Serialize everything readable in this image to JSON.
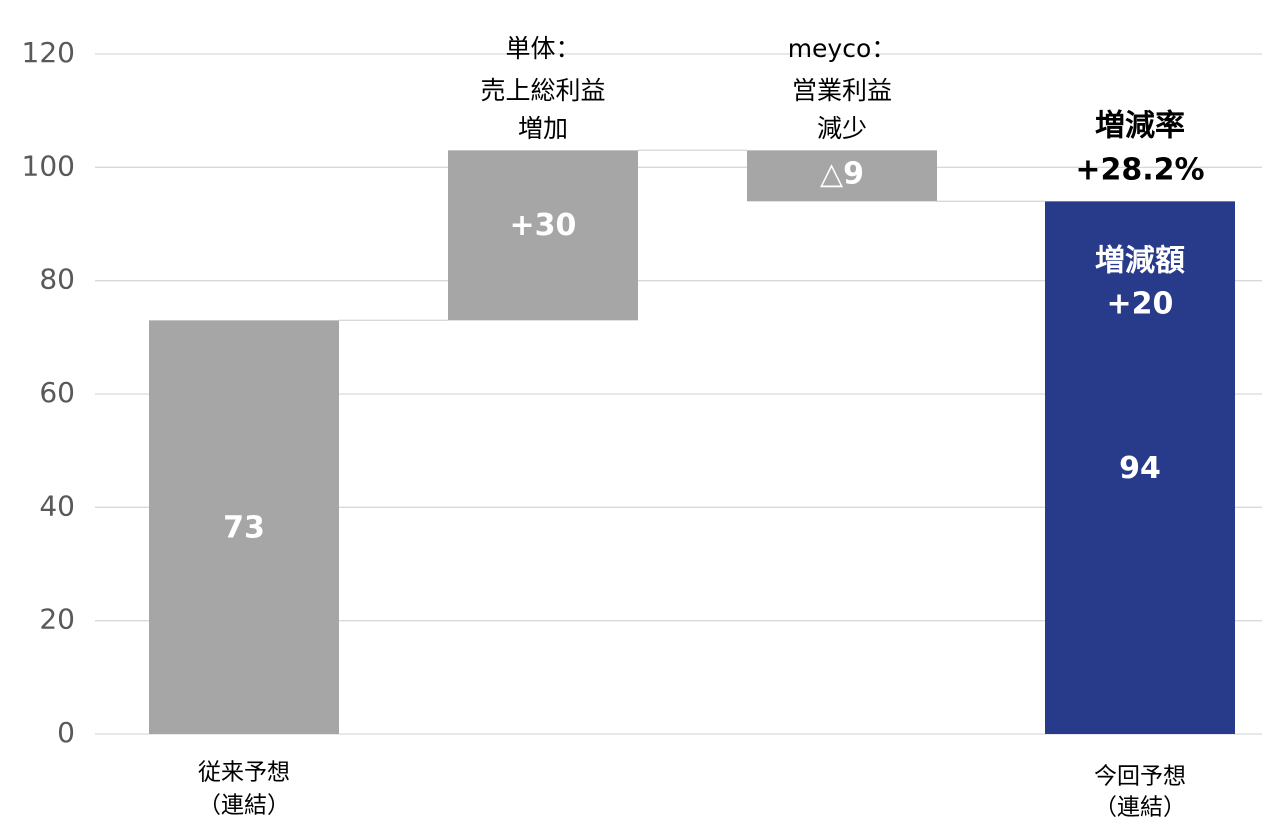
{
  "chart_data": {
    "type": "bar",
    "subtype": "waterfall",
    "ylim": [
      0,
      120
    ],
    "yticks": [
      "0",
      "20",
      "40",
      "60",
      "80",
      "100",
      "120"
    ],
    "grid": true,
    "legend": "none",
    "categories": [
      [
        "従来予想",
        "（連結）"
      ],
      [
        "単体：",
        "売上総利益",
        "増加"
      ],
      [
        "meyco：",
        "営業利益",
        "減少"
      ],
      [
        "今回予想",
        "（連結）"
      ]
    ],
    "bars": [
      {
        "kind": "total",
        "start": 0,
        "end": 73,
        "label": "73",
        "color": "#a6a6a6"
      },
      {
        "kind": "increase",
        "start": 73,
        "end": 103,
        "label": "+30",
        "color": "#a6a6a6"
      },
      {
        "kind": "decrease",
        "start": 103,
        "end": 94,
        "label": "△9",
        "color": "#a6a6a6"
      },
      {
        "kind": "total",
        "start": 0,
        "end": 94,
        "label": "94",
        "color": "#283a8a"
      }
    ],
    "annotations": {
      "change_amount": [
        "増減額",
        "+20"
      ],
      "change_rate": [
        "増減率",
        "+28.2%"
      ]
    }
  },
  "colors": {
    "neutral": "#a6a6a6",
    "highlight": "#283a8a",
    "grid": "#d9d9d9"
  }
}
